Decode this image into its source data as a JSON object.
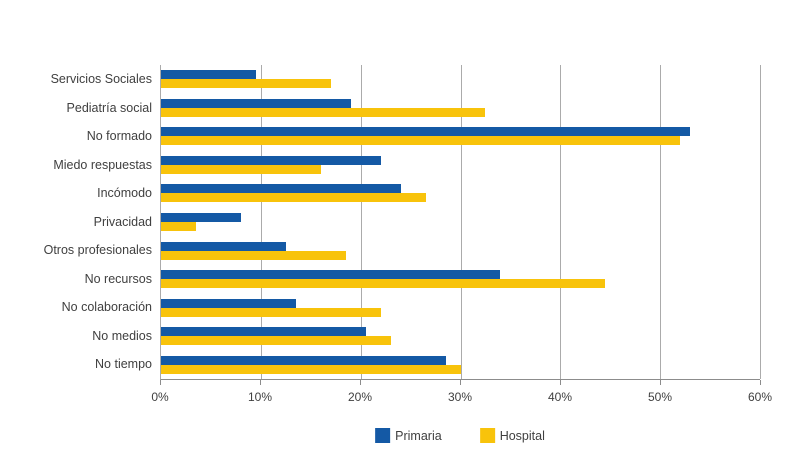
{
  "chart_data": {
    "type": "bar",
    "orientation": "horizontal",
    "title": "",
    "categories": [
      "Servicios Sociales",
      "Pediatría social",
      "No formado",
      "Miedo respuestas",
      "Incómodo",
      "Privacidad",
      "Otros profesionales",
      "No recursos",
      "No colaboración",
      "No medios",
      "No tiempo"
    ],
    "series": [
      {
        "name": "Primaria",
        "color": "#1459A5",
        "values": [
          9.5,
          19,
          53,
          22,
          24,
          8,
          12.5,
          34,
          13.5,
          20.5,
          28.5
        ]
      },
      {
        "name": "Hospital",
        "color": "#F8C30B",
        "values": [
          17,
          32.5,
          52,
          16,
          26.5,
          3.5,
          18.5,
          44.5,
          22,
          23,
          30
        ]
      }
    ],
    "x_axis": {
      "min": 0,
      "max": 60,
      "tick_step": 10,
      "tick_labels": [
        "0%",
        "10%",
        "20%",
        "30%",
        "40%",
        "50%",
        "60%"
      ],
      "unit": "%"
    },
    "grid": true,
    "legend_position": "bottom"
  },
  "colors": {
    "background": "#FFFFFF",
    "grid": "#ABABAB",
    "axis": "#8C8C8C",
    "text": "#404040",
    "primaria_blue": "#1459A5",
    "hospital_yellow": "#F8C30B"
  }
}
